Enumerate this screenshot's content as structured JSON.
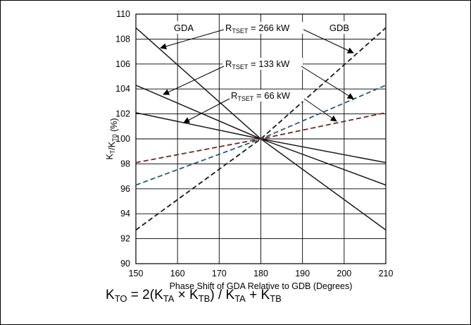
{
  "chart_data": {
    "type": "line",
    "xlabel": "Phase Shift of GDA Relative to GDB (Degrees)",
    "ylabel": {
      "base": "K",
      "sub1": "T",
      "mid": "/K",
      "sub2": "T0",
      "tail": " (%)"
    },
    "xlim": [
      150,
      210
    ],
    "ylim": [
      90,
      110
    ],
    "xticks": [
      "150",
      "160",
      "170",
      "180",
      "190",
      "200",
      "210"
    ],
    "yticks": [
      "90",
      "92",
      "94",
      "96",
      "98",
      "100",
      "102",
      "104",
      "106",
      "108",
      "110"
    ],
    "grid": true,
    "region_labels": [
      "GDA",
      "GDB"
    ],
    "annotations": [
      {
        "base": "R",
        "sub": "TSET",
        "rest": " = 266 kW"
      },
      {
        "base": "R",
        "sub": "TSET",
        "rest": " = 133 kW"
      },
      {
        "base": "R",
        "sub": "TSET",
        "rest": " = 66 kW"
      }
    ],
    "series": [
      {
        "label_index": 0,
        "x": [
          150,
          180,
          210
        ],
        "y_gda": [
          108.9,
          100,
          92.7
        ],
        "y_gdb": [
          92.7,
          100,
          108.9
        ]
      },
      {
        "label_index": 1,
        "x": [
          150,
          180,
          210
        ],
        "y_gda": [
          104.3,
          100,
          96.3
        ],
        "y_gdb": [
          96.3,
          100,
          104.3
        ]
      },
      {
        "label_index": 2,
        "x": [
          150,
          180,
          210
        ],
        "y_gda": [
          102.1,
          100,
          98.1
        ],
        "y_gdb": [
          98.1,
          100,
          102.1
        ]
      }
    ],
    "colors": {
      "gda": "#1a1a1a",
      "gdb_266": "#1a1a1a",
      "gdb_133": "#2e5b68",
      "gdb_66": "#6b2a2a"
    }
  },
  "formula": {
    "lhs": "K",
    "lhs_sub": "TO",
    "p1": " = 2(K",
    "s1": "TA",
    "p2": " × K",
    "s2": "TB",
    "p3": ") / K",
    "s3": "TA",
    "p4": " + K",
    "s4": "TB"
  }
}
